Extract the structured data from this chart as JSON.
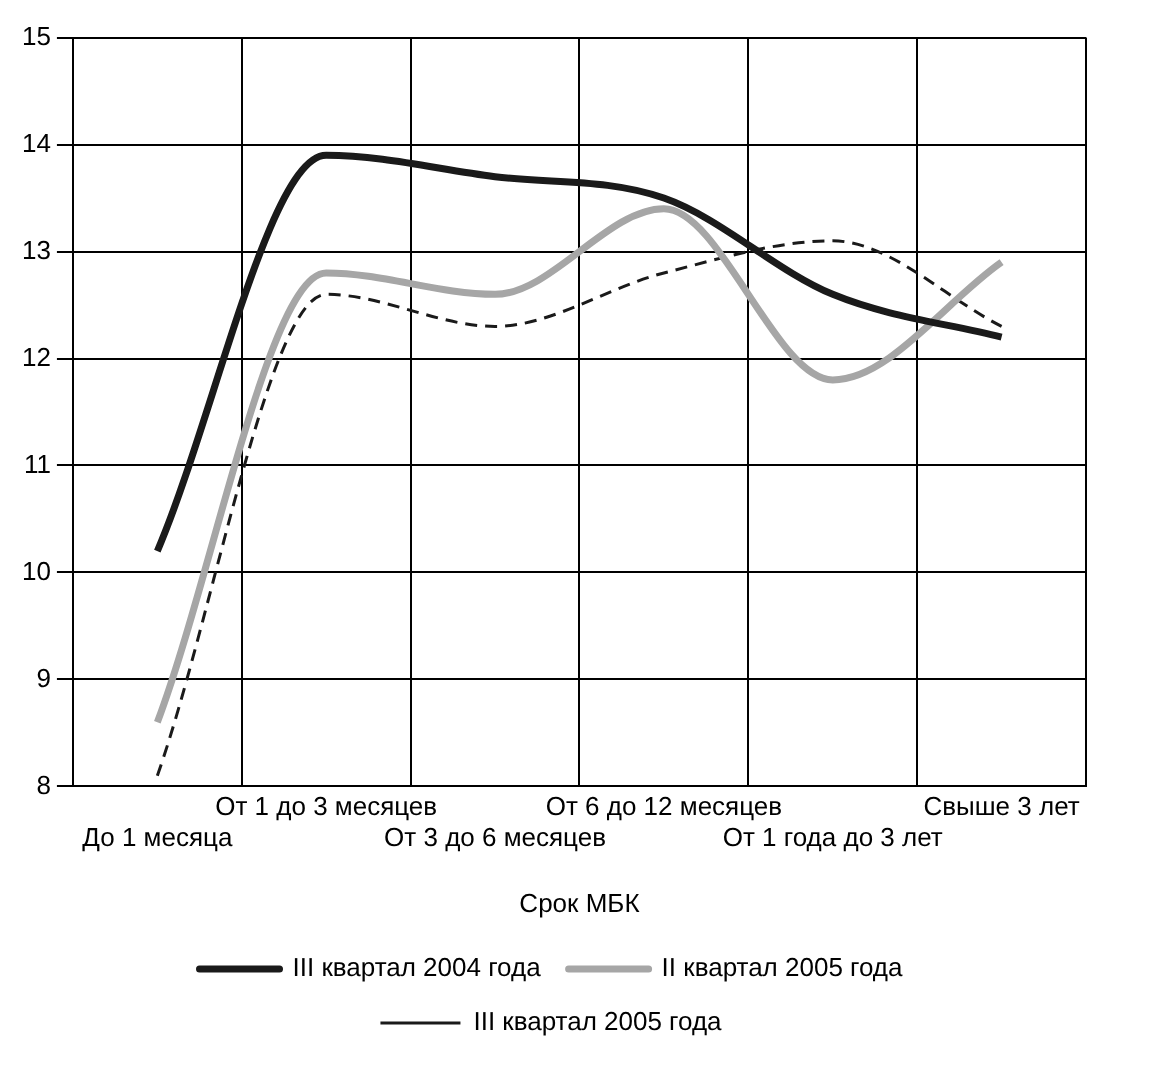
{
  "chart_data": {
    "type": "line",
    "xlabel": "Срок МБК",
    "categories": [
      "До 1 месяца",
      "От 1 до 3 месяцев",
      "От 3 до 6 месяцев",
      "От 6 до 12 месяцев",
      "От 1 года до 3 лет",
      "Свыше 3 лет"
    ],
    "series": [
      {
        "name": "III квартал 2004 года",
        "color": "#1a1a1a",
        "values": [
          10.2,
          13.9,
          13.7,
          13.5,
          12.6,
          12.2
        ],
        "line_style": "solid"
      },
      {
        "name": "II квартал 2005 года",
        "color": "#a6a6a6",
        "values": [
          8.6,
          12.8,
          12.6,
          13.4,
          11.8,
          12.9
        ],
        "line_style": "solid"
      },
      {
        "name": "III квартал 2005 года",
        "color": "#1a1a1a",
        "values": [
          8.1,
          12.6,
          12.3,
          12.8,
          13.1,
          12.3
        ],
        "line_style": "dashed"
      }
    ],
    "ylim": [
      8,
      15
    ],
    "yticks": [
      8,
      9,
      10,
      11,
      12,
      13,
      14,
      15
    ],
    "grid": true,
    "legend": "bottom",
    "marker": "none"
  }
}
